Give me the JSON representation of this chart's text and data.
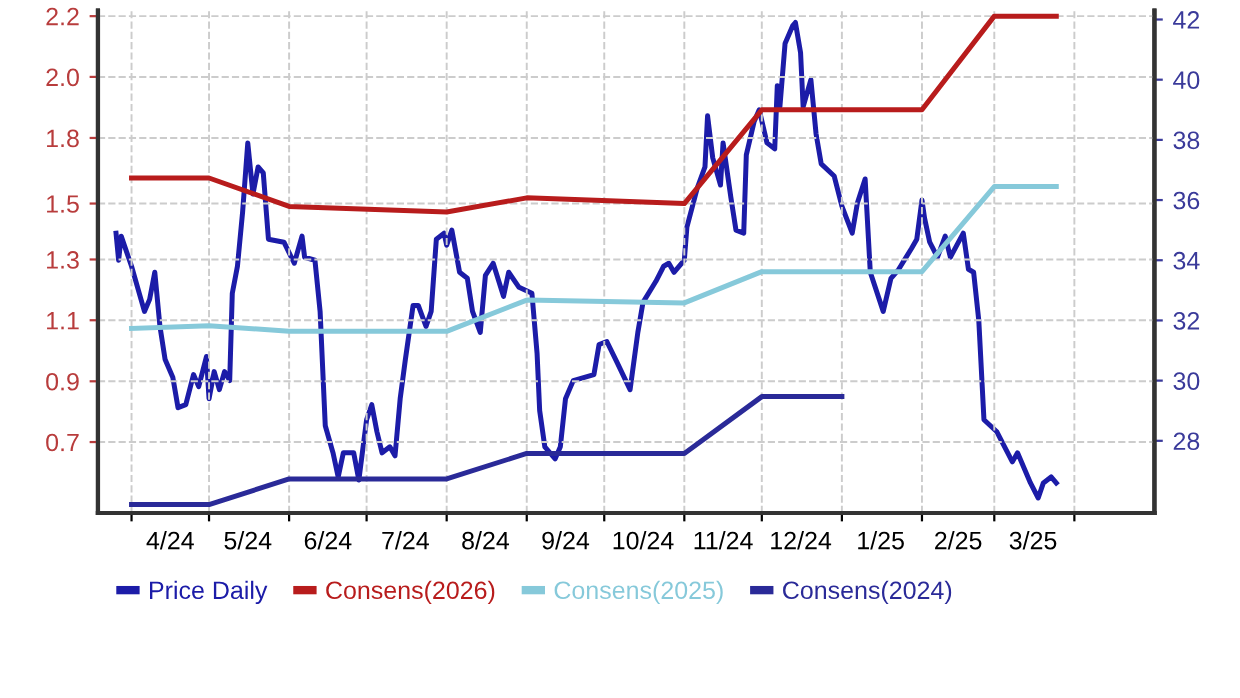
{
  "chart_data": {
    "type": "line",
    "xlim": [
      "2024-03-19",
      "2025-05-02"
    ],
    "xticks": [
      {
        "value": "2024-04-01",
        "label": null
      },
      {
        "value": "2024-04-16",
        "label": "4/24"
      },
      {
        "value": "2024-05-01",
        "label": null
      },
      {
        "value": "2024-05-16",
        "label": "5/24"
      },
      {
        "value": "2024-06-01",
        "label": null
      },
      {
        "value": "2024-06-16",
        "label": "6/24"
      },
      {
        "value": "2024-07-01",
        "label": null
      },
      {
        "value": "2024-07-16",
        "label": "7/24"
      },
      {
        "value": "2024-08-01",
        "label": null
      },
      {
        "value": "2024-08-16",
        "label": "8/24"
      },
      {
        "value": "2024-09-01",
        "label": null
      },
      {
        "value": "2024-09-16",
        "label": "9/24"
      },
      {
        "value": "2024-10-01",
        "label": null
      },
      {
        "value": "2024-10-16",
        "label": "10/24"
      },
      {
        "value": "2024-11-01",
        "label": null
      },
      {
        "value": "2024-11-16",
        "label": "11/24"
      },
      {
        "value": "2024-12-01",
        "label": null
      },
      {
        "value": "2024-12-16",
        "label": "12/24"
      },
      {
        "value": "2025-01-01",
        "label": null
      },
      {
        "value": "2025-01-16",
        "label": "1/25"
      },
      {
        "value": "2025-02-01",
        "label": null
      },
      {
        "value": "2025-02-15",
        "label": "2/25"
      },
      {
        "value": "2025-03-01",
        "label": null
      },
      {
        "value": "2025-03-16",
        "label": "3/25"
      },
      {
        "value": "2025-04-01",
        "label": null
      }
    ],
    "ylim": [
      0.45,
      2.22
    ],
    "yticks": [
      0.7,
      {
        "value": 0.914,
        "label": "0.9"
      },
      {
        "value": 1.129,
        "label": "1.1"
      },
      {
        "value": 1.343,
        "label": "1.3"
      },
      {
        "value": 1.54,
        "label": "1.5"
      },
      {
        "value": 1.771,
        "label": "1.8"
      },
      {
        "value": 1.986,
        "label": "2.0"
      },
      2.2
    ],
    "y2lim": [
      25.6,
      42.3
    ],
    "y2ticks": [
      28,
      30,
      32,
      34,
      36,
      38,
      40,
      42
    ],
    "grid": true,
    "legend": "bottom",
    "line_style": "solid",
    "marker": "none",
    "series": [
      {
        "name": "Price Daily",
        "color": "#1c1ca8",
        "axis": "y2",
        "x": [
          "2024-03-26",
          "2024-03-27",
          "2024-03-28",
          "2024-04-01",
          "2024-04-04",
          "2024-04-06",
          "2024-04-08",
          "2024-04-10",
          "2024-04-12",
          "2024-04-14",
          "2024-04-17",
          "2024-04-19",
          "2024-04-22",
          "2024-04-25",
          "2024-04-27",
          "2024-04-30",
          "2024-05-01",
          "2024-05-03",
          "2024-05-05",
          "2024-05-07",
          "2024-05-09",
          "2024-05-10",
          "2024-05-12",
          "2024-05-14",
          "2024-05-16",
          "2024-05-18",
          "2024-05-20",
          "2024-05-22",
          "2024-05-24",
          "2024-05-30",
          "2024-06-03",
          "2024-06-06",
          "2024-06-07",
          "2024-06-11",
          "2024-06-13",
          "2024-06-15",
          "2024-06-18",
          "2024-06-20",
          "2024-06-22",
          "2024-06-26",
          "2024-06-28",
          "2024-07-01",
          "2024-07-03",
          "2024-07-05",
          "2024-07-07",
          "2024-07-10",
          "2024-07-12",
          "2024-07-14",
          "2024-07-16",
          "2024-07-19",
          "2024-07-21",
          "2024-07-24",
          "2024-07-26",
          "2024-07-28",
          "2024-07-31",
          "2024-08-01",
          "2024-08-03",
          "2024-08-06",
          "2024-08-09",
          "2024-08-11",
          "2024-08-14",
          "2024-08-16",
          "2024-08-19",
          "2024-08-23",
          "2024-08-25",
          "2024-08-29",
          "2024-09-03",
          "2024-09-05",
          "2024-09-06",
          "2024-09-08",
          "2024-09-12",
          "2024-09-14",
          "2024-09-16",
          "2024-09-19",
          "2024-09-27",
          "2024-09-29",
          "2024-10-02",
          "2024-10-06",
          "2024-10-11",
          "2024-10-14",
          "2024-10-16",
          "2024-10-21",
          "2024-10-24",
          "2024-10-26",
          "2024-10-28",
          "2024-11-01",
          "2024-11-02",
          "2024-11-06",
          "2024-11-09",
          "2024-11-10",
          "2024-11-12",
          "2024-11-15",
          "2024-11-16",
          "2024-11-19",
          "2024-11-21",
          "2024-11-24",
          "2024-11-25",
          "2024-11-28",
          "2024-11-30",
          "2024-12-03",
          "2024-12-06",
          "2024-12-07",
          "2024-12-08",
          "2024-12-10",
          "2024-12-13",
          "2024-12-14",
          "2024-12-16",
          "2024-12-17",
          "2024-12-20",
          "2024-12-22",
          "2024-12-24",
          "2024-12-29",
          "2025-01-01",
          "2025-01-05",
          "2025-01-07",
          "2025-01-10",
          "2025-01-12",
          "2025-01-17",
          "2025-01-20",
          "2025-01-23",
          "2025-01-28",
          "2025-01-30",
          "2025-02-01",
          "2025-02-02",
          "2025-02-04",
          "2025-02-07",
          "2025-02-10",
          "2025-02-12",
          "2025-02-17",
          "2025-02-19",
          "2025-02-21",
          "2025-02-23",
          "2025-02-25",
          "2025-03-02",
          "2025-03-08",
          "2025-03-10",
          "2025-03-15",
          "2025-03-18",
          "2025-03-20",
          "2025-03-23",
          "2025-03-25"
        ],
        "values": [
          34.9,
          34.0,
          34.8,
          33.8,
          32.9,
          32.3,
          32.7,
          33.6,
          31.8,
          30.7,
          30.1,
          29.1,
          29.2,
          30.2,
          29.8,
          30.8,
          29.4,
          30.3,
          29.7,
          30.3,
          30.0,
          32.9,
          33.8,
          35.6,
          37.9,
          36.2,
          37.1,
          36.9,
          34.7,
          34.6,
          33.9,
          34.8,
          34.1,
          34.0,
          32.3,
          28.5,
          27.6,
          26.8,
          27.6,
          27.6,
          26.7,
          28.7,
          29.2,
          28.3,
          27.6,
          27.8,
          27.5,
          29.4,
          30.7,
          32.5,
          32.5,
          31.8,
          32.3,
          34.7,
          34.9,
          34.5,
          35.0,
          33.6,
          33.4,
          32.3,
          31.6,
          33.5,
          33.9,
          32.8,
          33.6,
          33.1,
          32.9,
          30.9,
          29.0,
          27.8,
          27.4,
          27.8,
          29.4,
          30.0,
          30.2,
          31.2,
          31.3,
          30.6,
          29.7,
          31.6,
          32.6,
          33.3,
          33.8,
          33.9,
          33.6,
          34.0,
          35.1,
          36.4,
          37.1,
          38.8,
          37.4,
          36.5,
          37.9,
          36.1,
          35.0,
          34.9,
          37.5,
          38.6,
          39.0,
          37.9,
          37.7,
          39.8,
          39.1,
          41.2,
          41.8,
          41.9,
          40.9,
          39.1,
          40.0,
          38.2,
          37.2,
          36.8,
          35.8,
          34.9,
          35.9,
          36.7,
          33.6,
          32.3,
          33.4,
          33.7,
          34.4,
          34.7,
          36.0,
          35.4,
          34.6,
          34.1,
          34.8,
          34.1,
          34.9,
          33.7,
          33.6,
          32.0,
          28.7,
          28.3,
          27.3,
          27.6,
          26.6,
          26.1,
          26.6,
          26.8,
          26.6
        ]
      },
      {
        "name": "Consens(2026)",
        "color": "#b81c1c",
        "x": [
          "2024-04-01",
          "2024-05-01",
          "2024-06-01",
          "2024-08-01",
          "2024-09-01",
          "2024-11-01",
          "2024-12-01",
          "2025-02-01",
          "2025-03-01",
          "2025-03-25"
        ],
        "values": [
          1.63,
          1.63,
          1.53,
          1.51,
          1.56,
          1.54,
          1.87,
          1.87,
          2.2,
          2.2
        ]
      },
      {
        "name": "Consens(2025)",
        "color": "#86c9da",
        "x": [
          "2024-04-01",
          "2024-05-01",
          "2024-06-01",
          "2024-08-01",
          "2024-09-01",
          "2024-11-01",
          "2024-12-01",
          "2025-02-01",
          "2025-03-01",
          "2025-03-25"
        ],
        "values": [
          1.1,
          1.11,
          1.09,
          1.09,
          1.2,
          1.19,
          1.3,
          1.3,
          1.6,
          1.6
        ]
      },
      {
        "name": "Consens(2024)",
        "color": "#2a2a98",
        "x": [
          "2024-04-01",
          "2024-05-01",
          "2024-06-01",
          "2024-08-01",
          "2024-09-01",
          "2024-11-01",
          "2024-12-01",
          "2025-01-01"
        ],
        "values": [
          0.48,
          0.48,
          0.57,
          0.57,
          0.66,
          0.66,
          0.86,
          0.86
        ]
      }
    ]
  }
}
